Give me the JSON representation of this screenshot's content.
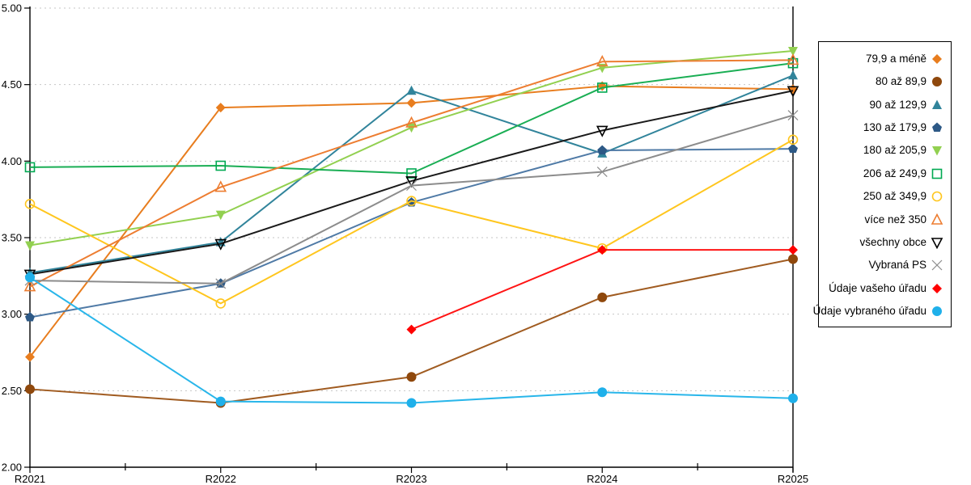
{
  "chart_data": {
    "type": "line",
    "title": "",
    "xlabel": "",
    "ylabel": "",
    "grid": "dotted-horizontal",
    "legend_position": "right-outside-box",
    "categories": [
      "R2021",
      "R2022",
      "R2023",
      "R2024",
      "R2025"
    ],
    "y_axis": {
      "min": 2.0,
      "max": 5.0,
      "step": 0.5,
      "tick_labels": [
        "2.00",
        "2.50",
        "3.00",
        "3.50",
        "4.00",
        "4.50",
        "5.00"
      ]
    },
    "series": [
      {
        "name": "79,9 a méně",
        "marker": "diamond",
        "style": "filled",
        "color": "#E87D1E",
        "line_color": "#E87D1E",
        "values": [
          2.72,
          4.35,
          4.38,
          4.49,
          4.47
        ]
      },
      {
        "name": "80 až 89,9",
        "marker": "circle",
        "style": "filled",
        "color": "#8F480C",
        "line_color": "#A05B20",
        "values": [
          2.51,
          2.42,
          2.59,
          3.11,
          3.36
        ]
      },
      {
        "name": "90 až 129,9",
        "marker": "triangle-up",
        "style": "filled",
        "color": "#31849B",
        "line_color": "#31849B",
        "values": [
          3.27,
          3.47,
          4.46,
          4.05,
          4.56
        ]
      },
      {
        "name": "130 až 179,9",
        "marker": "pentagon",
        "style": "filled",
        "color": "#2D5986",
        "line_color": "#4F7AA6",
        "values": [
          2.98,
          3.2,
          3.73,
          4.07,
          4.08
        ]
      },
      {
        "name": "180 až 205,9",
        "marker": "triangle-down",
        "style": "filled",
        "color": "#92D050",
        "line_color": "#92D050",
        "values": [
          3.45,
          3.65,
          4.22,
          4.61,
          4.72
        ]
      },
      {
        "name": "206 až 249,9",
        "marker": "square",
        "style": "open",
        "color": "#00A952",
        "line_color": "#1AAE54",
        "values": [
          3.96,
          3.97,
          3.92,
          4.48,
          4.64
        ]
      },
      {
        "name": "250 až 349,9",
        "marker": "circle",
        "style": "open",
        "color": "#FFC61E",
        "line_color": "#FFC61E",
        "values": [
          3.72,
          3.07,
          3.74,
          3.43,
          4.14
        ]
      },
      {
        "name": "více než 350",
        "marker": "triangle-up",
        "style": "open",
        "color": "#ED7D31",
        "line_color": "#ED7D31",
        "values": [
          3.18,
          3.83,
          4.25,
          4.65,
          4.66
        ]
      },
      {
        "name": "všechny obce",
        "marker": "triangle-down",
        "style": "open",
        "color": "#000000",
        "line_color": "#1A1A1A",
        "values": [
          3.26,
          3.46,
          3.87,
          4.2,
          4.46
        ]
      },
      {
        "name": "Vybraná PS",
        "marker": "x",
        "style": "open",
        "color": "#8C8C8C",
        "line_color": "#8C8C8C",
        "values": [
          3.22,
          3.2,
          3.84,
          3.93,
          4.3
        ]
      },
      {
        "name": "Údaje vašeho úřadu",
        "marker": "diamond",
        "style": "filled",
        "color": "#FF0000",
        "line_color": "#FF1414",
        "values": [
          null,
          null,
          2.9,
          3.42,
          3.42
        ]
      },
      {
        "name": "Údaje vybraného úřadu",
        "marker": "circle",
        "style": "filled",
        "color": "#1FB0EA",
        "line_color": "#29B6EA",
        "values": [
          3.24,
          2.43,
          2.42,
          2.49,
          2.45
        ]
      }
    ]
  }
}
